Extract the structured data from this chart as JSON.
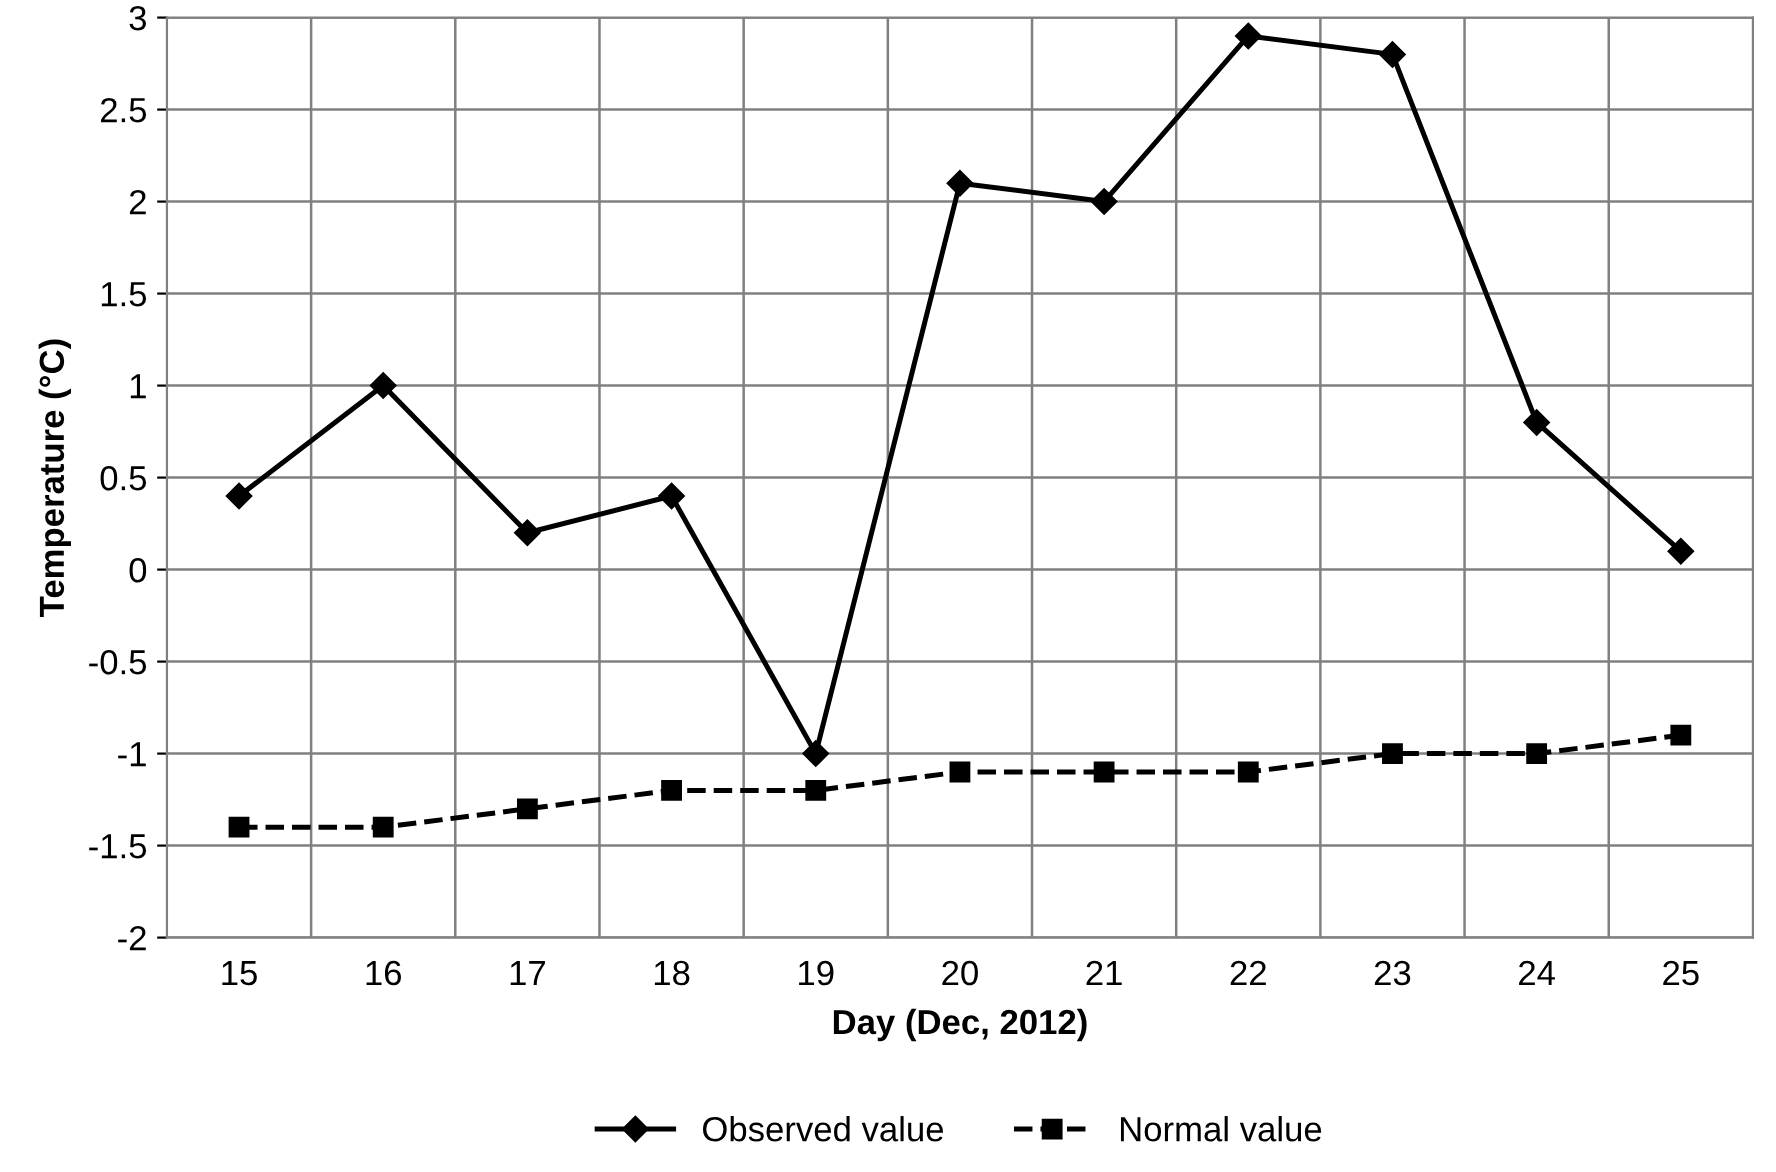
{
  "chart_data": {
    "type": "line",
    "xlabel": "Day (Dec, 2012)",
    "ylabel": "Temperature (°C)",
    "categories": [
      "15",
      "16",
      "17",
      "18",
      "19",
      "20",
      "21",
      "22",
      "23",
      "24",
      "25"
    ],
    "series": [
      {
        "name": "Observed value",
        "color": "#000000",
        "marker": "diamond",
        "line_style": "solid",
        "values": [
          0.4,
          1.0,
          0.2,
          0.4,
          -1.0,
          2.1,
          2.0,
          2.9,
          2.8,
          0.8,
          0.1
        ]
      },
      {
        "name": "Normal value",
        "color": "#000000",
        "marker": "square",
        "line_style": "dashed",
        "values": [
          -1.4,
          -1.4,
          -1.3,
          -1.2,
          -1.2,
          -1.1,
          -1.1,
          -1.1,
          -1.0,
          -1.0,
          -0.9
        ]
      }
    ],
    "ylim": [
      -2,
      3
    ],
    "yticks": [
      -2,
      -1.5,
      -1,
      -0.5,
      0,
      0.5,
      1,
      1.5,
      2,
      2.5,
      3
    ],
    "grid": true,
    "legend": "bottom"
  }
}
